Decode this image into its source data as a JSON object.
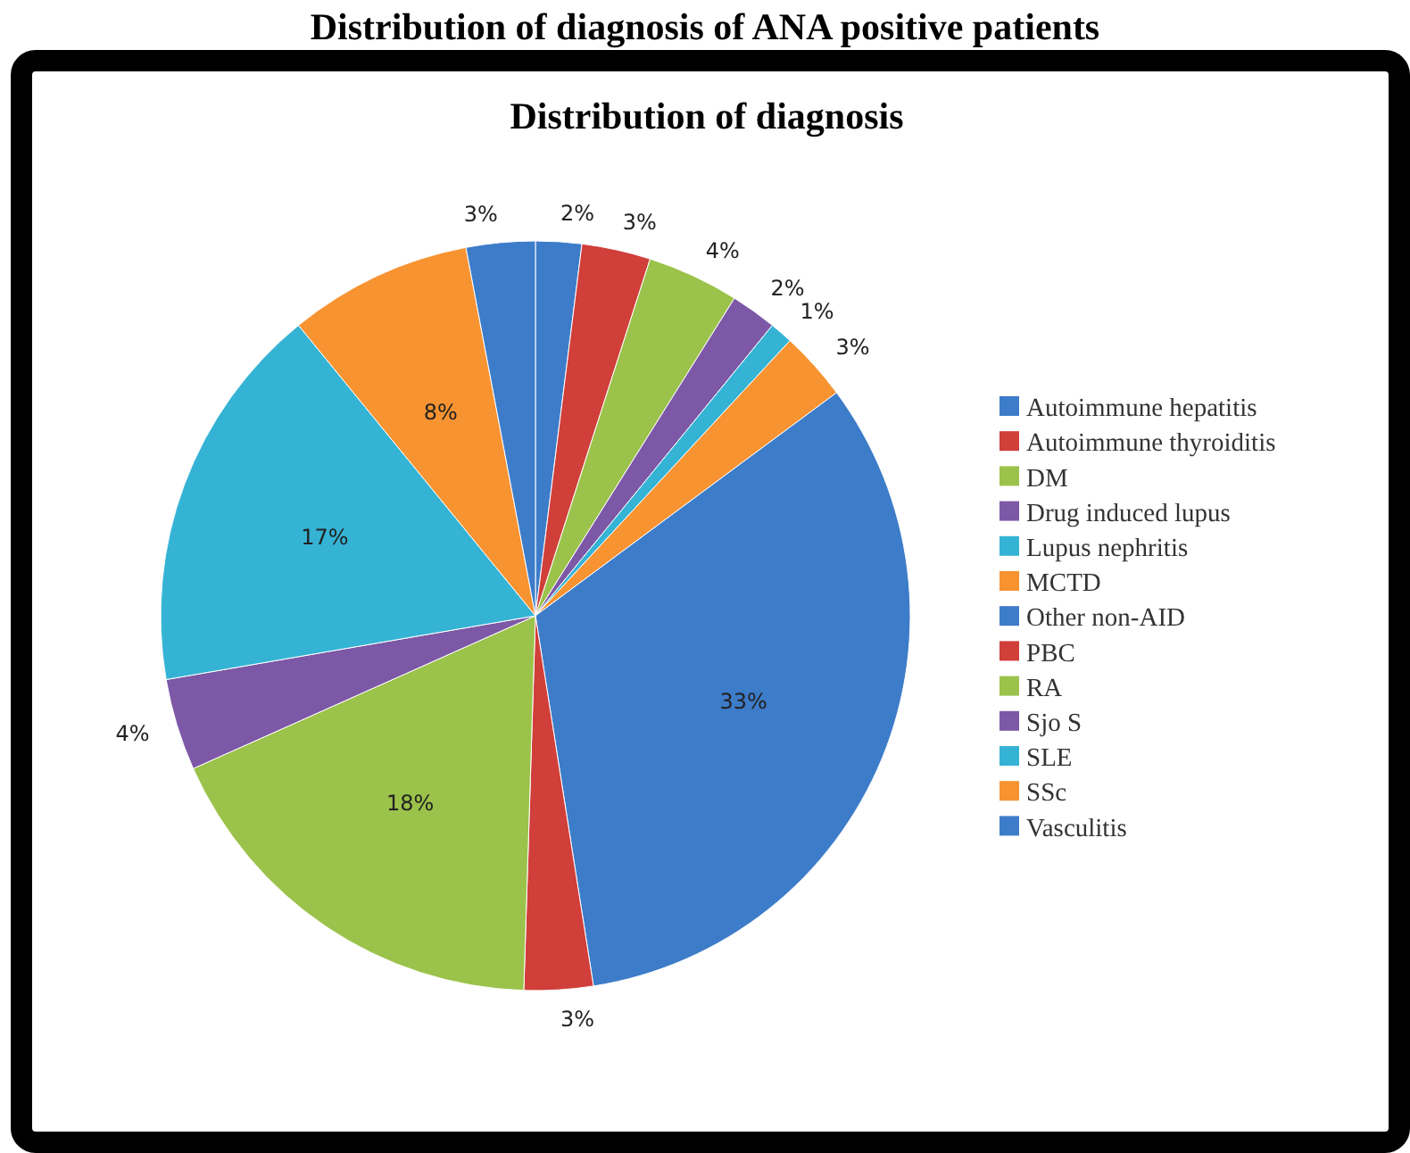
{
  "chart_data": {
    "type": "pie",
    "title": "Distribution of diagnosis of ANA positive patients",
    "subtitle": "Distribution of diagnosis",
    "categories": [
      "Autoimmune hepatitis",
      "Autoimmune thyroiditis",
      "DM",
      "Drug induced lupus",
      "Lupus nephritis",
      "MCTD",
      "Other non-AID",
      "PBC",
      "RA",
      "Sjo S",
      "SLE",
      "SSc",
      "Vasculitis"
    ],
    "values": [
      2,
      3,
      4,
      2,
      1,
      3,
      33,
      3,
      18,
      4,
      17,
      8,
      3
    ],
    "colors": [
      "#3d7cc9",
      "#d03f3a",
      "#9bc24a",
      "#7c58a6",
      "#35b3d5",
      "#f79331",
      "#3d7cc9",
      "#d03f3a",
      "#9bc24a",
      "#7c58a6",
      "#35b3d5",
      "#f79331",
      "#3d7cc9"
    ],
    "value_labels": [
      "2%",
      "3%",
      "4%",
      "2%",
      "1%",
      "3%",
      "33%",
      "3%",
      "18%",
      "4%",
      "17%",
      "8%",
      "3%"
    ],
    "legend": "right"
  }
}
